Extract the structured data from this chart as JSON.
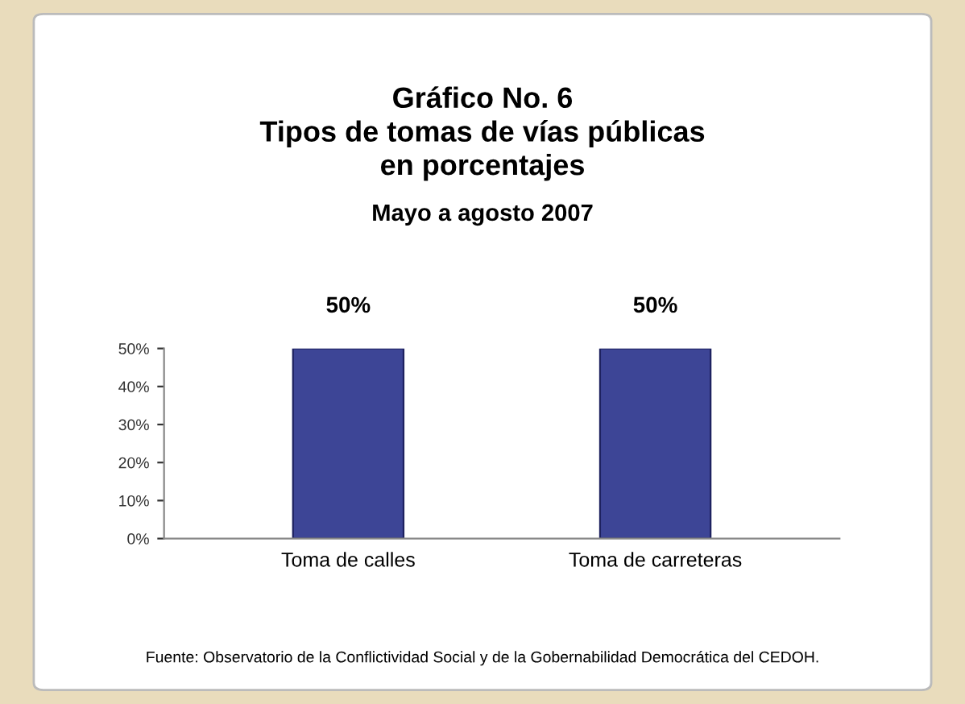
{
  "chart_data": {
    "type": "bar",
    "title": "Gráfico No. 6\nTipos de tomas de vías públicas\nen porcentajes",
    "subtitle": "Mayo a agosto 2007",
    "categories": [
      "Toma de calles",
      "Toma de carreteras"
    ],
    "values": [
      50,
      50
    ],
    "color": "#3d4596",
    "ylim": [
      0,
      50
    ],
    "yticks": [
      {
        "value": 0,
        "label": "0%"
      },
      {
        "value": 10,
        "label": "10%"
      },
      {
        "value": 20,
        "label": "20%"
      },
      {
        "value": 30,
        "label": "30%"
      },
      {
        "value": 40,
        "label": "40%"
      },
      {
        "value": 50,
        "label": "50%"
      }
    ],
    "value_labels": [
      "50%",
      "50%"
    ],
    "grid": false,
    "legend": false,
    "annotations": [
      "Fuente: Observatorio de la Conflictividad Social y de la Gobernabilidad Democrática del CEDOH."
    ]
  }
}
